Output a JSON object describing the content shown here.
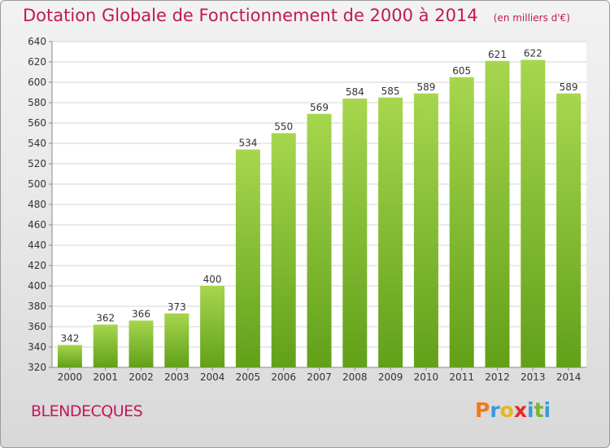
{
  "title": "Dotation Globale de Fonctionnement de 2000 à 2014",
  "unit_note": "(en milliers d'€)",
  "commune": "BLENDECQUES",
  "brand": {
    "letters": [
      "P",
      "r",
      "o",
      "x",
      "i",
      "t",
      "i"
    ],
    "colors": [
      "#f07a1a",
      "#3a9ad9",
      "#e6b81c",
      "#e8262b",
      "#3a9ad9",
      "#7ab530",
      "#3a9ad9"
    ]
  },
  "colors": {
    "bar_top": "#a6d64e",
    "bar_bottom": "#62a01a",
    "title": "#c0185a"
  },
  "chart_data": {
    "type": "bar",
    "categories": [
      "2000",
      "2001",
      "2002",
      "2003",
      "2004",
      "2005",
      "2006",
      "2007",
      "2008",
      "2009",
      "2010",
      "2011",
      "2012",
      "2013",
      "2014"
    ],
    "values": [
      342,
      362,
      366,
      373,
      400,
      534,
      550,
      569,
      584,
      585,
      589,
      605,
      621,
      622,
      589
    ],
    "ylim": [
      320,
      640
    ],
    "yticks": [
      320,
      340,
      360,
      380,
      400,
      420,
      440,
      460,
      480,
      500,
      520,
      540,
      560,
      580,
      600,
      620,
      640
    ],
    "grid": true,
    "data_labels": true
  }
}
